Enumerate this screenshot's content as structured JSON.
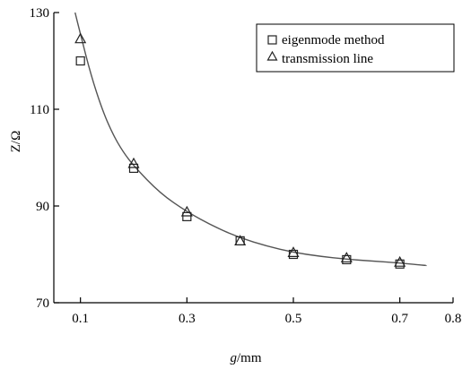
{
  "chart_data": {
    "type": "scatter",
    "xlabel_italic": "g",
    "xlabel_unit": "/mm",
    "ylabel": "Z/Ω",
    "xlim": [
      0.05,
      0.8
    ],
    "ylim": [
      70,
      130
    ],
    "x_ticks": [
      {
        "value": 0.1,
        "label": "0.1"
      },
      {
        "value": 0.3,
        "label": "0.3"
      },
      {
        "value": 0.5,
        "label": "0.5"
      },
      {
        "value": 0.7,
        "label": "0.7"
      },
      {
        "value": 0.8,
        "label": "0.8"
      }
    ],
    "y_ticks": [
      {
        "value": 70,
        "label": "70"
      },
      {
        "value": 90,
        "label": "90"
      },
      {
        "value": 110,
        "label": "110"
      },
      {
        "value": 130,
        "label": "130"
      }
    ],
    "grid": false,
    "legend_position": "top-right",
    "series": [
      {
        "name": "eigenmode method",
        "marker": "square",
        "points": [
          {
            "x": 0.1,
            "y": 120.0
          },
          {
            "x": 0.2,
            "y": 97.8
          },
          {
            "x": 0.3,
            "y": 87.8
          },
          {
            "x": 0.4,
            "y": 82.8
          },
          {
            "x": 0.5,
            "y": 80.0
          },
          {
            "x": 0.6,
            "y": 78.9
          },
          {
            "x": 0.7,
            "y": 78.0
          }
        ]
      },
      {
        "name": "transmission line",
        "marker": "triangle",
        "points": [
          {
            "x": 0.1,
            "y": 124.5
          },
          {
            "x": 0.2,
            "y": 98.7
          },
          {
            "x": 0.3,
            "y": 88.7
          },
          {
            "x": 0.4,
            "y": 82.7
          },
          {
            "x": 0.5,
            "y": 80.3
          },
          {
            "x": 0.6,
            "y": 79.2
          },
          {
            "x": 0.7,
            "y": 78.3
          }
        ]
      }
    ],
    "fit_curve": {
      "points": [
        [
          0.09,
          130.0
        ],
        [
          0.1,
          125.5
        ],
        [
          0.12,
          117.0
        ],
        [
          0.14,
          110.2
        ],
        [
          0.16,
          105.0
        ],
        [
          0.18,
          101.2
        ],
        [
          0.2,
          98.3
        ],
        [
          0.25,
          92.6
        ],
        [
          0.3,
          88.8
        ],
        [
          0.35,
          85.8
        ],
        [
          0.4,
          83.4
        ],
        [
          0.45,
          81.7
        ],
        [
          0.5,
          80.4
        ],
        [
          0.55,
          79.6
        ],
        [
          0.6,
          79.0
        ],
        [
          0.65,
          78.6
        ],
        [
          0.7,
          78.2
        ],
        [
          0.75,
          77.7
        ]
      ]
    }
  }
}
